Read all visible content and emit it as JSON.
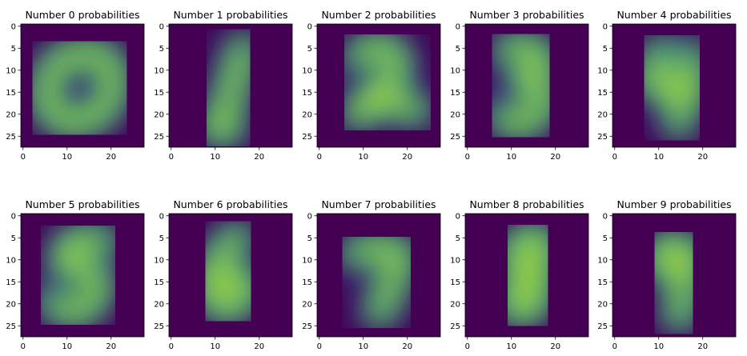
{
  "chart_data": {
    "type": "heatmap",
    "colormap": [
      "#440154",
      "#482878",
      "#3e4989",
      "#31688e",
      "#26828e",
      "#1f9e89",
      "#35b779",
      "#6ece58",
      "#b5de2b",
      "#fde725"
    ],
    "grid_size": 28,
    "x_ticks": [
      "0",
      "10",
      "20"
    ],
    "y_ticks": [
      "0",
      "5",
      "10",
      "15",
      "20",
      "25"
    ],
    "panels": [
      {
        "title": "Number 0 probabilities",
        "digit": "0"
      },
      {
        "title": "Number 1 probabilities",
        "digit": "1"
      },
      {
        "title": "Number 2 probabilities",
        "digit": "2"
      },
      {
        "title": "Number 3 probabilities",
        "digit": "3"
      },
      {
        "title": "Number 4 probabilities",
        "digit": "4"
      },
      {
        "title": "Number 5 probabilities",
        "digit": "5"
      },
      {
        "title": "Number 6 probabilities",
        "digit": "6"
      },
      {
        "title": "Number 7 probabilities",
        "digit": "7"
      },
      {
        "title": "Number 8 probabilities",
        "digit": "8"
      },
      {
        "title": "Number 9 probabilities",
        "digit": "9"
      }
    ]
  }
}
